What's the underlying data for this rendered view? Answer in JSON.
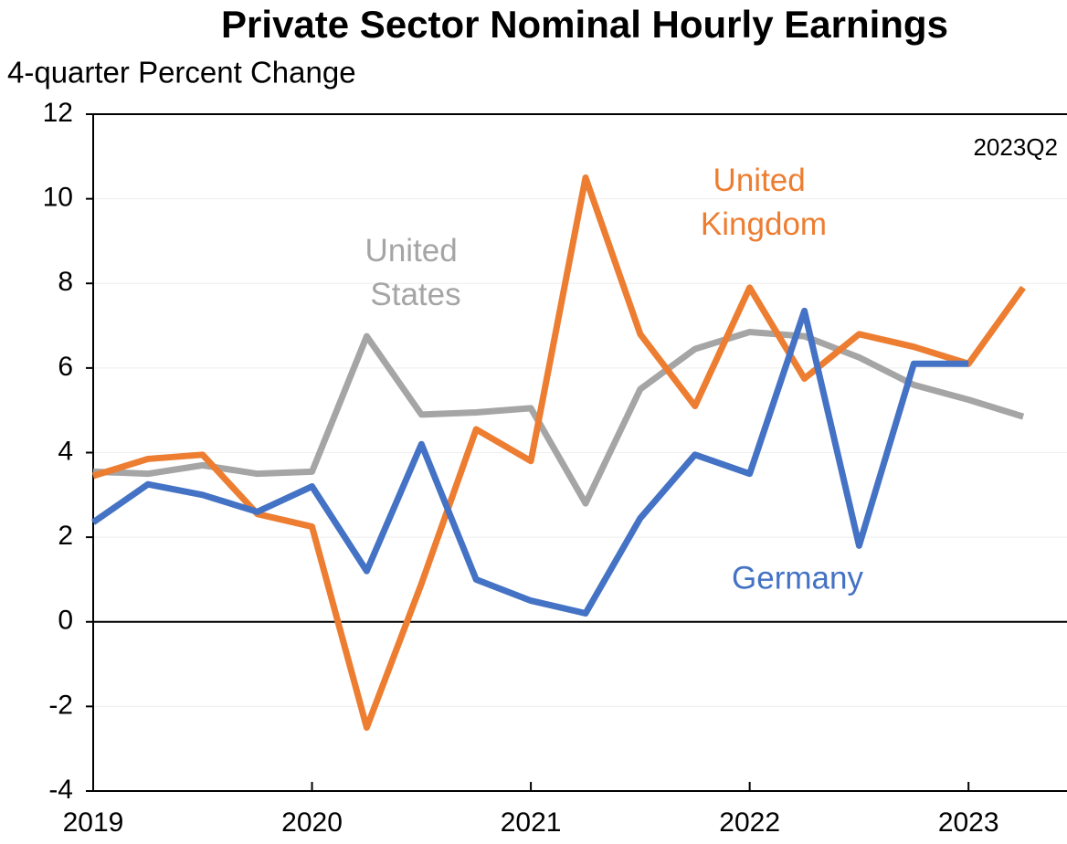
{
  "chart_data": {
    "type": "line",
    "title": "Private Sector Nominal Hourly Earnings",
    "y_label": "4-quarter Percent Change",
    "annotation": "2023Q2",
    "x": [
      2019,
      2019.25,
      2019.5,
      2019.75,
      2020,
      2020.25,
      2020.5,
      2020.75,
      2021,
      2021.25,
      2021.5,
      2021.75,
      2022,
      2022.25,
      2022.5,
      2022.75,
      2023,
      2023.25
    ],
    "series": [
      {
        "name": "United States",
        "color": "#a5a5a5",
        "values": [
          3.55,
          3.5,
          3.7,
          3.5,
          3.55,
          6.75,
          4.9,
          4.95,
          5.05,
          2.8,
          5.5,
          6.45,
          6.85,
          6.75,
          6.25,
          5.6,
          5.25,
          4.85
        ]
      },
      {
        "name": "United Kingdom",
        "color": "#ed7d31",
        "values": [
          3.45,
          3.85,
          3.95,
          2.55,
          2.25,
          -2.5,
          0.9,
          4.55,
          3.8,
          10.5,
          6.8,
          5.1,
          7.9,
          5.75,
          6.8,
          6.5,
          6.1,
          7.9
        ]
      },
      {
        "name": "Germany",
        "color": "#4472c4",
        "values": [
          2.35,
          3.25,
          3.0,
          2.6,
          3.2,
          1.2,
          4.2,
          1.0,
          0.5,
          0.2,
          2.45,
          3.95,
          3.5,
          7.35,
          1.8,
          6.1,
          6.1,
          null
        ]
      }
    ],
    "xlim": [
      2019,
      2023.45
    ],
    "xticks": [
      2019,
      2020,
      2021,
      2022,
      2023
    ],
    "ylim": [
      -4,
      12
    ],
    "yticks": [
      -4,
      -2,
      0,
      2,
      4,
      6,
      8,
      10,
      12
    ],
    "grid": true
  }
}
